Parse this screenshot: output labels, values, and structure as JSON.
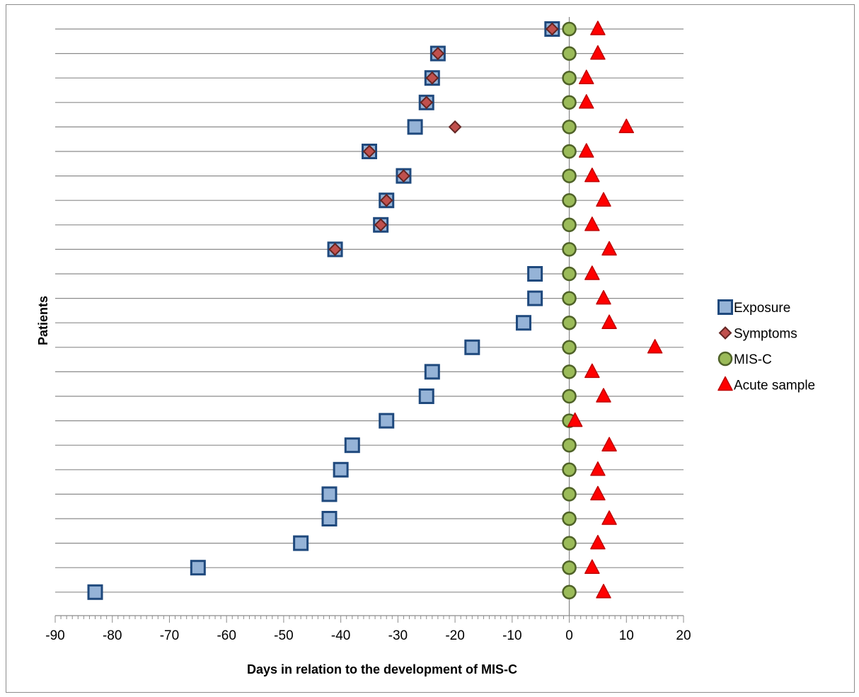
{
  "chart_data": {
    "type": "scatter",
    "title": "",
    "xlabel": "Days in relation to the development of MIS-C",
    "ylabel": "Patients",
    "xlim": [
      -90,
      20
    ],
    "x_ticks": [
      -90,
      -80,
      -70,
      -60,
      -50,
      -40,
      -30,
      -20,
      -10,
      0,
      10,
      20
    ],
    "x_tick_labels": [
      "-90",
      "-80",
      "-70",
      "-60",
      "-50",
      "-40",
      "-30",
      "-20",
      "-10",
      "0",
      "10",
      "20"
    ],
    "patient_count": 24,
    "grid": "horizontal",
    "legend_position": "right",
    "series": [
      {
        "name": "Exposure",
        "marker": "square",
        "color": "#95b3d7",
        "edge_color": "#1f497d",
        "values": [
          -3,
          -23,
          -24,
          -25,
          -27,
          -35,
          -29,
          -32,
          -33,
          -41,
          -6,
          -6,
          -8,
          -17,
          -24,
          -25,
          -32,
          -38,
          -40,
          -42,
          -42,
          -47,
          -65,
          -83
        ]
      },
      {
        "name": "Symptoms",
        "marker": "diamond",
        "color": "#c0504d",
        "edge_color": "#632523",
        "values": [
          -3,
          -23,
          -24,
          -25,
          -20,
          -35,
          -29,
          -32,
          -33,
          -41,
          null,
          null,
          null,
          null,
          null,
          null,
          null,
          null,
          null,
          null,
          null,
          null,
          null,
          null
        ]
      },
      {
        "name": "MIS-C",
        "marker": "circle",
        "color": "#9bbb59",
        "edge_color": "#4f6228",
        "values": [
          0,
          0,
          0,
          0,
          0,
          0,
          0,
          0,
          0,
          0,
          0,
          0,
          0,
          0,
          0,
          0,
          0,
          0,
          0,
          0,
          0,
          0,
          0,
          0
        ]
      },
      {
        "name": "Acute sample",
        "marker": "triangle",
        "color": "#ff0000",
        "edge_color": "#c00000",
        "values": [
          5,
          5,
          3,
          3,
          10,
          3,
          4,
          6,
          4,
          7,
          4,
          6,
          7,
          15,
          4,
          6,
          1,
          7,
          5,
          5,
          7,
          5,
          4,
          6
        ]
      }
    ]
  }
}
